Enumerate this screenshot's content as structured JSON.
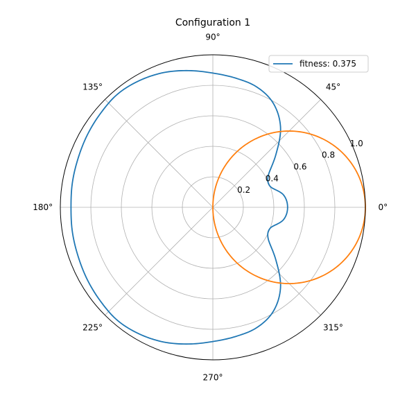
{
  "chart_data": {
    "type": "line",
    "projection": "polar",
    "title": "Configuration 1",
    "rlim": [
      0,
      1.0
    ],
    "r_ticks": [
      0.2,
      0.4,
      0.6,
      0.8,
      1.0
    ],
    "r_tick_labels": [
      "0.2",
      "0.4",
      "0.6",
      "0.8",
      "1.0"
    ],
    "theta_ticks": [
      0,
      45,
      90,
      135,
      180,
      225,
      270,
      315
    ],
    "theta_tick_labels": [
      "0°",
      "45°",
      "90°",
      "135°",
      "180°",
      "225°",
      "270°",
      "315°"
    ],
    "grid": true,
    "legend": {
      "placement": "upper-right",
      "entries": [
        "fitness: 0.375"
      ]
    },
    "series": [
      {
        "name": "fitness: 0.375",
        "color": "#1f77b4",
        "theta_deg": [
          0,
          10,
          20,
          30,
          40,
          50,
          60,
          70,
          80,
          90,
          100,
          110,
          120,
          130,
          140,
          150,
          160,
          170,
          180,
          190,
          200,
          210,
          220,
          230,
          240,
          250,
          260,
          270,
          280,
          290,
          300,
          310,
          320,
          330,
          340,
          350,
          360
        ],
        "r": [
          0.49,
          0.47,
          0.4,
          0.42,
          0.54,
          0.69,
          0.79,
          0.84,
          0.86,
          0.88,
          0.91,
          0.94,
          0.96,
          0.97,
          0.96,
          0.95,
          0.94,
          0.935,
          0.93,
          0.935,
          0.94,
          0.95,
          0.96,
          0.97,
          0.96,
          0.94,
          0.91,
          0.88,
          0.86,
          0.84,
          0.79,
          0.69,
          0.54,
          0.42,
          0.4,
          0.47,
          0.49
        ]
      },
      {
        "name": "",
        "color": "#ff7f0e",
        "curve": "r = cos(theta)",
        "theta_deg": [
          -90,
          -75,
          -60,
          -45,
          -30,
          -15,
          0,
          15,
          30,
          45,
          60,
          75,
          90
        ],
        "r": [
          0.0,
          0.259,
          0.5,
          0.707,
          0.866,
          0.966,
          1.0,
          0.966,
          0.866,
          0.707,
          0.5,
          0.259,
          0.0
        ]
      }
    ]
  }
}
